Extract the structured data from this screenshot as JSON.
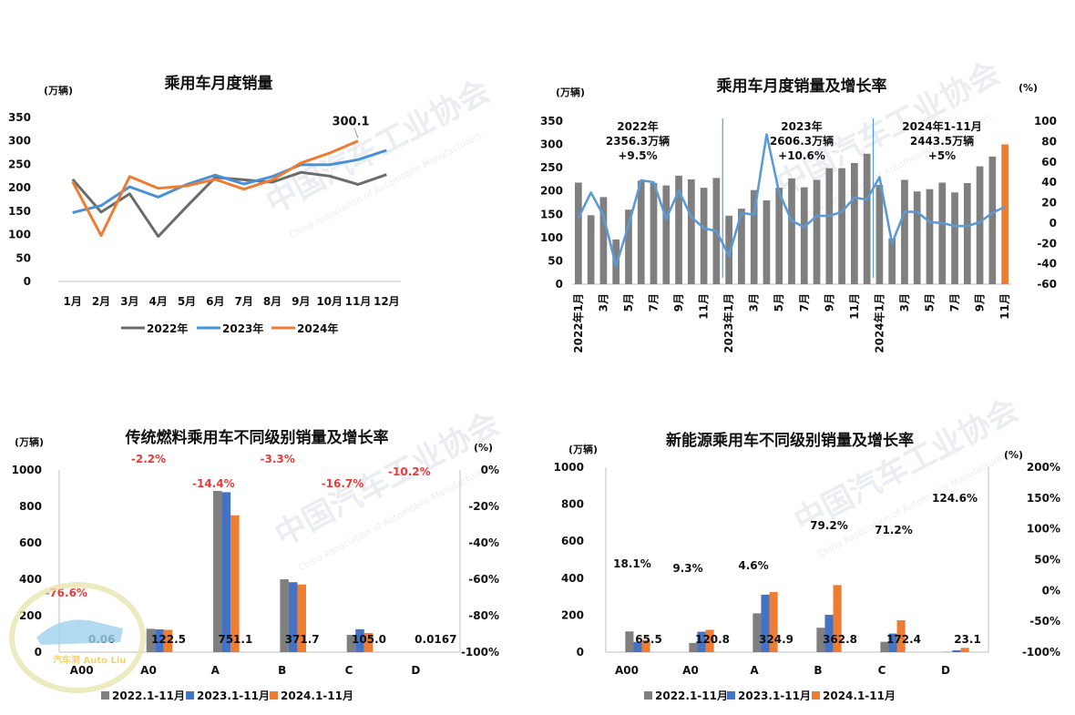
{
  "watermark": {
    "text_cn": "中国汽车工业协会",
    "text_en": "China Association of Automobile Manufacturers",
    "corner_logo": "汽车测 Auto Liu"
  },
  "chart_data": [
    {
      "id": "c1",
      "type": "line",
      "title": "乘用车月度销量",
      "ylabel": "(万辆)",
      "ylim": [
        0,
        350
      ],
      "yticks": [
        0,
        50,
        100,
        150,
        200,
        250,
        300,
        350
      ],
      "categories": [
        "1月",
        "2月",
        "3月",
        "4月",
        "5月",
        "6月",
        "7月",
        "8月",
        "9月",
        "10月",
        "11月",
        "12月"
      ],
      "series": [
        {
          "name": "2022年",
          "color": "#6b6b6b",
          "values": [
            218,
            148,
            187,
            96,
            160,
            222,
            217,
            212,
            233,
            225,
            207,
            228
          ]
        },
        {
          "name": "2023年",
          "color": "#4a90d6",
          "values": [
            147,
            162,
            202,
            180,
            207,
            227,
            208,
            224,
            249,
            249,
            260,
            280
          ]
        },
        {
          "name": "2024年",
          "color": "#ee7d31",
          "values": [
            213,
            98,
            224,
            199,
            204,
            218,
            197,
            217,
            253,
            274,
            300.1,
            null
          ]
        }
      ],
      "annotation": "300.1"
    },
    {
      "id": "c2",
      "type": "bar",
      "title": "乘用车月度销量及增长率",
      "ylabel_left": "(万辆)",
      "ylabel_right": "(%)",
      "ylim_left": [
        0,
        350
      ],
      "ylim_right": [
        -60,
        100
      ],
      "yticks_left": [
        0,
        50,
        100,
        150,
        200,
        250,
        300,
        350
      ],
      "yticks_right": [
        -60,
        -40,
        -20,
        0,
        20,
        40,
        60,
        80,
        100
      ],
      "x_labels": [
        "2022年1月",
        "3月",
        "5月",
        "7月",
        "9月",
        "11月",
        "2023年1月",
        "3月",
        "5月",
        "7月",
        "9月",
        "11月",
        "2024年1月",
        "3月",
        "5月",
        "7月",
        "9月",
        "11月"
      ],
      "values": [
        218,
        148,
        187,
        96,
        160,
        222,
        217,
        212,
        233,
        225,
        207,
        228,
        147,
        162,
        202,
        180,
        207,
        227,
        208,
        224,
        249,
        249,
        260,
        280,
        213,
        98,
        224,
        199,
        204,
        218,
        197,
        217,
        253,
        274,
        300.1
      ],
      "growth": [
        5,
        30,
        7,
        -42,
        -2,
        42,
        40,
        4,
        32,
        6,
        -5,
        -8,
        -32,
        10,
        8,
        87,
        30,
        2,
        -4,
        7,
        7,
        11,
        25,
        23,
        45,
        -20,
        11,
        11,
        1,
        0,
        -3,
        -3,
        1,
        10,
        16
      ],
      "bar_color": "#7f7f7f",
      "highlight_color": "#ee7d31",
      "line_color": "#5b9bd5",
      "annotations": [
        {
          "lines": [
            "2022年",
            "2356.3万辆",
            "+9.5%"
          ]
        },
        {
          "lines": [
            "2023年",
            "2606.3万辆",
            "+10.6%"
          ]
        },
        {
          "lines": [
            "2024年1-11月",
            "2443.5万辆",
            "+5%"
          ]
        }
      ]
    },
    {
      "id": "c3",
      "type": "bar",
      "title": "传统燃料乘用车不同级别销量及增长率",
      "ylabel_left": "(万辆)",
      "ylabel_right": "(%)",
      "ylim_left": [
        0,
        1000
      ],
      "yticks_left": [
        0,
        200,
        400,
        600,
        800,
        1000
      ],
      "yticks_right": [
        "-100%",
        "-80%",
        "-60%",
        "-40%",
        "-20%",
        "0%"
      ],
      "categories": [
        "A00",
        "A0",
        "A",
        "B",
        "C",
        "D"
      ],
      "series": [
        {
          "name": "2022.1-11月",
          "color": "#7f7f7f",
          "values": [
            0.3,
            128,
            885,
            400,
            95,
            0.02
          ]
        },
        {
          "name": "2023.1-11月",
          "color": "#4472c4",
          "values": [
            0.26,
            125,
            878,
            384,
            126,
            0.018
          ]
        },
        {
          "name": "2024.1-11月",
          "color": "#ee7d31",
          "values": [
            0.06,
            122.5,
            751.1,
            371.7,
            105.0,
            0.0167
          ]
        }
      ],
      "value_labels": [
        "0.06",
        "122.5",
        "751.1",
        "371.7",
        "105.0",
        "0.0167"
      ],
      "growth_labels": [
        "-76.6%",
        "-2.2%",
        "-14.4%",
        "-3.3%",
        "-16.7%",
        "-10.2%"
      ]
    },
    {
      "id": "c4",
      "type": "bar",
      "title": "新能源乘用车不同级别销量及增长率",
      "ylabel_left": "(万辆)",
      "ylabel_right": "(%)",
      "ylim_left": [
        0,
        1000
      ],
      "yticks_left": [
        0,
        200,
        400,
        600,
        800,
        1000
      ],
      "yticks_right": [
        "-100%",
        "-50%",
        "0%",
        "50%",
        "100%",
        "150%",
        "200%"
      ],
      "categories": [
        "A00",
        "A0",
        "A",
        "B",
        "C",
        "D"
      ],
      "series": [
        {
          "name": "2022.1-11月",
          "color": "#7f7f7f",
          "values": [
            112,
            50,
            210,
            132,
            56,
            2
          ]
        },
        {
          "name": "2023.1-11月",
          "color": "#4472c4",
          "values": [
            55.5,
            110.5,
            311,
            202,
            100.6,
            10.3
          ]
        },
        {
          "name": "2024.1-11月",
          "color": "#ee7d31",
          "values": [
            65.5,
            120.8,
            324.9,
            362.8,
            172.4,
            23.1
          ]
        }
      ],
      "value_labels": [
        "65.5",
        "120.8",
        "324.9",
        "362.8",
        "172.4",
        "23.1"
      ],
      "growth_labels": [
        "18.1%",
        "9.3%",
        "4.6%",
        "79.2%",
        "71.2%",
        "124.6%"
      ]
    }
  ]
}
